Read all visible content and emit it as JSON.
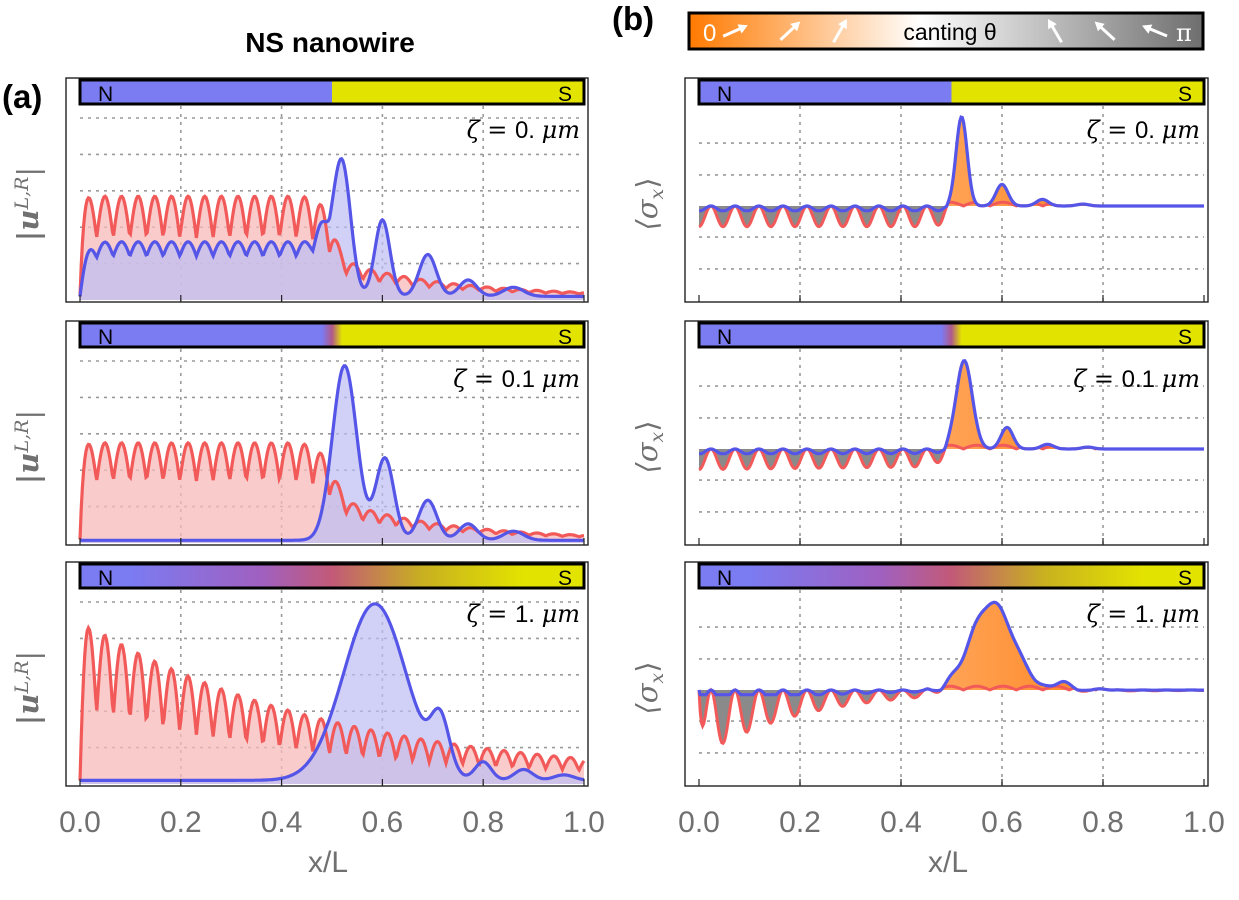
{
  "figure": {
    "title": "NS nanowire",
    "panel_a_label": "(a)",
    "panel_b_label": "(b)",
    "xlabel": "x/L",
    "ylabel_a_main": "|u",
    "ylabel_a_sup": "L,R",
    "ylabel_a_close": "|",
    "ylabel_b": "⟨σ",
    "ylabel_b_sub": "x",
    "ylabel_b_close": "⟩",
    "region_left": "N",
    "region_right": "S",
    "zeta_prefix": "ζ = ",
    "zeta_unit": "μm",
    "colorbar": {
      "start": "0",
      "label": "canting θ",
      "end": "π"
    },
    "colors": {
      "normal": "#7B7BF2",
      "super": "#E3E300",
      "red_curve": "#F25A5A",
      "blue_curve": "#5555E8",
      "red_fill": "#F7B9B9",
      "blue_fill": "#BDBDF5",
      "orange": "#FF7700",
      "grey": "#8A8A8A"
    }
  },
  "chart_data": [
    {
      "type": "line",
      "panel": "a",
      "zeta": "0.",
      "xlim": [
        0,
        1
      ],
      "xticks": [
        "0.0",
        "0.2",
        "0.4",
        "0.6",
        "0.8",
        "1.0"
      ],
      "series": [
        {
          "kind": "red",
          "sample_x": [
            0.0,
            0.02,
            0.1,
            0.3,
            0.47,
            0.5,
            0.6,
            0.8,
            1.0
          ],
          "sample_y": [
            0.0,
            0.55,
            0.55,
            0.55,
            0.52,
            0.26,
            0.13,
            0.05,
            0.02
          ]
        },
        {
          "kind": "blue",
          "sample_x": [
            0.0,
            0.06,
            0.3,
            0.47,
            0.52,
            0.6,
            0.69,
            0.8,
            1.0
          ],
          "sample_y": [
            0.0,
            0.27,
            0.27,
            0.52,
            1.0,
            0.48,
            0.24,
            0.07,
            0.02
          ]
        }
      ]
    },
    {
      "type": "line",
      "panel": "a",
      "zeta": "0.1",
      "xlim": [
        0,
        1
      ],
      "xticks": [
        "0.0",
        "0.2",
        "0.4",
        "0.6",
        "0.8",
        "1.0"
      ],
      "series": [
        {
          "kind": "red",
          "sample_x": [
            0.0,
            0.02,
            0.3,
            0.47,
            0.5,
            0.6,
            0.8,
            1.0
          ],
          "sample_y": [
            0.0,
            0.52,
            0.52,
            0.5,
            0.27,
            0.14,
            0.05,
            0.02
          ]
        },
        {
          "kind": "blue",
          "sample_x": [
            0.0,
            0.4,
            0.47,
            0.525,
            0.6,
            0.69,
            0.8,
            1.0
          ],
          "sample_y": [
            0.0,
            0.02,
            0.3,
            1.0,
            0.48,
            0.24,
            0.08,
            0.02
          ]
        }
      ]
    },
    {
      "type": "line",
      "panel": "a",
      "zeta": "1.",
      "xlim": [
        0,
        1
      ],
      "xticks": [
        "0.0",
        "0.2",
        "0.4",
        "0.6",
        "0.8",
        "1.0"
      ],
      "series": [
        {
          "kind": "red",
          "sample_x": [
            0.0,
            0.02,
            0.2,
            0.4,
            0.6,
            0.8,
            1.0
          ],
          "sample_y": [
            0.0,
            0.85,
            0.6,
            0.3,
            0.2,
            0.06,
            0.02
          ]
        },
        {
          "kind": "blue",
          "sample_x": [
            0.0,
            0.4,
            0.5,
            0.585,
            0.66,
            0.72,
            0.8,
            1.0
          ],
          "sample_y": [
            0.0,
            0.05,
            0.55,
            1.0,
            0.3,
            0.32,
            0.12,
            0.03
          ]
        }
      ]
    },
    {
      "type": "line",
      "panel": "b",
      "zeta": "0.",
      "xlim": [
        0,
        1
      ],
      "xticks": [
        "0.0",
        "0.2",
        "0.4",
        "0.6",
        "0.8",
        "1.0"
      ],
      "series": [
        {
          "kind": "sigma_x",
          "sample_x": [
            0.0,
            0.1,
            0.47,
            0.5,
            0.52,
            0.6,
            0.68,
            0.8,
            1.0
          ],
          "sample_y": [
            -0.35,
            -0.35,
            -0.35,
            0.05,
            0.95,
            0.23,
            0.06,
            0.0,
            0.0
          ]
        }
      ]
    },
    {
      "type": "line",
      "panel": "b",
      "zeta": "0.1",
      "xlim": [
        0,
        1
      ],
      "xticks": [
        "0.0",
        "0.2",
        "0.4",
        "0.6",
        "0.8",
        "1.0"
      ],
      "series": [
        {
          "kind": "sigma_x",
          "sample_x": [
            0.0,
            0.1,
            0.47,
            0.525,
            0.6,
            0.69,
            0.8,
            1.0
          ],
          "sample_y": [
            -0.28,
            -0.28,
            -0.22,
            0.95,
            0.23,
            0.05,
            0.01,
            0.0
          ]
        }
      ]
    },
    {
      "type": "line",
      "panel": "b",
      "zeta": "1.",
      "xlim": [
        0,
        1
      ],
      "xticks": [
        "0.0",
        "0.2",
        "0.4",
        "0.6",
        "0.8",
        "1.0"
      ],
      "series": [
        {
          "kind": "sigma_x",
          "sample_x": [
            0.0,
            0.02,
            0.2,
            0.4,
            0.585,
            0.68,
            0.72,
            0.8,
            1.0
          ],
          "sample_y": [
            0.0,
            -0.75,
            -0.5,
            -0.15,
            0.95,
            0.04,
            0.1,
            0.0,
            0.0
          ]
        }
      ]
    }
  ]
}
